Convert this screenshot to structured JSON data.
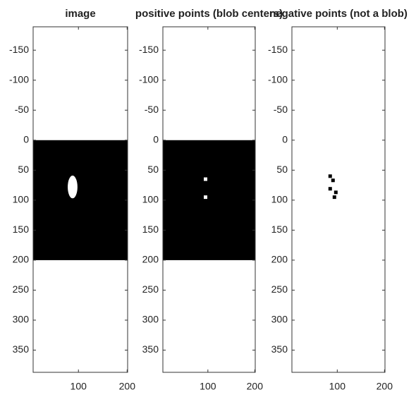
{
  "chart_data": [
    {
      "type": "image",
      "title": "image",
      "xlim": [
        7,
        201
      ],
      "ylim": [
        -189,
        387
      ],
      "y_reversed": true,
      "xticks": [
        100,
        200
      ],
      "yticks": [
        -150,
        -100,
        -50,
        0,
        50,
        100,
        150,
        200,
        250,
        300,
        350
      ],
      "fill_region": {
        "x": [
          7,
          201
        ],
        "y": [
          0,
          200
        ],
        "color": "#000000"
      },
      "blob": {
        "cx": 88,
        "cy": 78,
        "rx": 10,
        "ry": 19,
        "color": "#ffffff"
      }
    },
    {
      "type": "image",
      "title": "positive points (blob centers)",
      "xlim": [
        4,
        201
      ],
      "ylim": [
        -189,
        387
      ],
      "y_reversed": true,
      "xticks": [
        100,
        200
      ],
      "yticks": [
        -150,
        -100,
        -50,
        0,
        50,
        100,
        150,
        200,
        250,
        300,
        350
      ],
      "fill_region": {
        "x": [
          4,
          201
        ],
        "y": [
          0,
          200
        ],
        "color": "#000000"
      },
      "points": {
        "x": [
          95,
          95
        ],
        "y": [
          65,
          95
        ],
        "color": "#ffffff"
      }
    },
    {
      "type": "image",
      "title": "negative points (not a blob)",
      "xlim": [
        4,
        201
      ],
      "ylim": [
        -189,
        387
      ],
      "y_reversed": true,
      "xticks": [
        100,
        200
      ],
      "yticks": [
        -150,
        -100,
        -50,
        0,
        50,
        100,
        150,
        200,
        250,
        300,
        350
      ],
      "points": {
        "x": [
          85,
          91,
          85,
          97,
          94
        ],
        "y": [
          60,
          67,
          81,
          87,
          95
        ],
        "color": "#000000"
      }
    }
  ]
}
